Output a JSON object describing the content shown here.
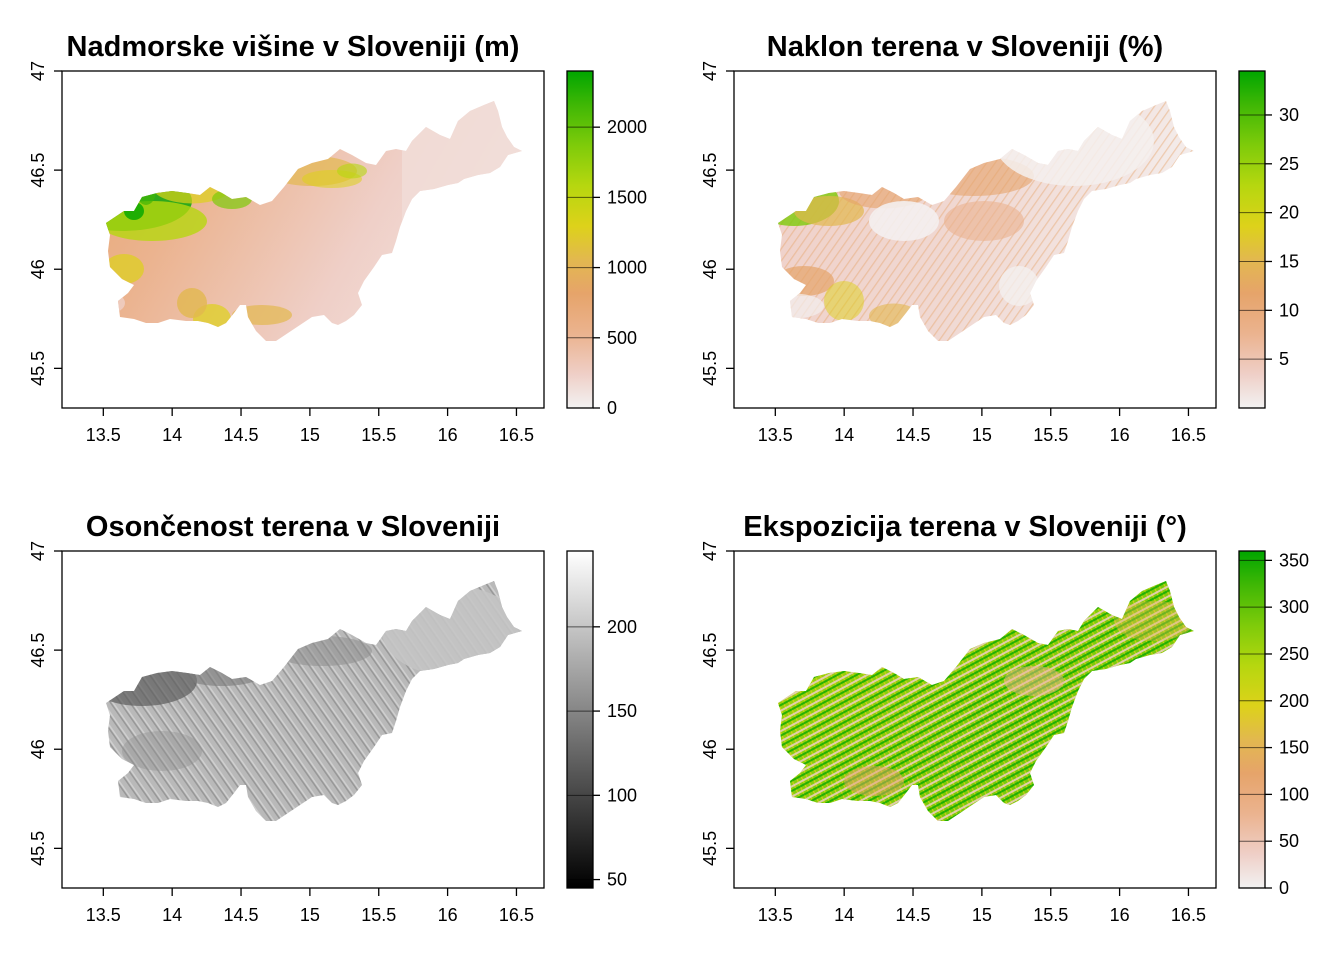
{
  "figure": {
    "panels": [
      {
        "id": "elevation",
        "title": "Nadmorske višine v Sloveniji (m)",
        "palette": "terrain",
        "legend_ticks": [
          "0",
          "500",
          "1000",
          "1500",
          "2000"
        ],
        "legend_range": [
          0,
          2400
        ]
      },
      {
        "id": "slope",
        "title": "Naklon terena v Sloveniji (%)",
        "palette": "terrain",
        "legend_ticks": [
          "5",
          "10",
          "15",
          "20",
          "25",
          "30"
        ],
        "legend_range": [
          0,
          34.5
        ]
      },
      {
        "id": "hillshade",
        "title": "Osončenost terena v Sloveniji",
        "palette": "grey",
        "legend_ticks": [
          "50",
          "100",
          "150",
          "200"
        ],
        "legend_range": [
          45,
          245
        ]
      },
      {
        "id": "aspect",
        "title": "Ekspozicija terena v Sloveniji (°)",
        "palette": "terrain",
        "legend_ticks": [
          "0",
          "50",
          "100",
          "150",
          "200",
          "250",
          "300",
          "350"
        ],
        "legend_range": [
          0,
          360
        ]
      }
    ],
    "x_ticks": [
      "13.5",
      "14",
      "14.5",
      "15",
      "15.5",
      "16",
      "16.5"
    ],
    "y_ticks": [
      "45.5",
      "46",
      "46.5",
      "47"
    ],
    "colors": {
      "terrain": [
        "#F2F2F2",
        "#EFCFC7",
        "#EBB38F",
        "#E6A46A",
        "#E2B84F",
        "#DDD21A",
        "#B6D70F",
        "#7ECB0A",
        "#3FB705",
        "#00A600"
      ],
      "grey": [
        "#000000",
        "#FFFFFF"
      ]
    }
  },
  "chart_data": [
    {
      "type": "heatmap",
      "title": "Nadmorske višine v Sloveniji (m)",
      "x_ticks": [
        13.5,
        14,
        14.5,
        15,
        15.5,
        16,
        16.5
      ],
      "y_ticks": [
        45.5,
        46,
        46.5,
        47
      ],
      "xlim": [
        13.2,
        16.7
      ],
      "ylim": [
        45.3,
        47
      ],
      "legend": {
        "min": 0,
        "max": 2400,
        "ticks": [
          0,
          500,
          1000,
          1500,
          2000
        ]
      }
    },
    {
      "type": "heatmap",
      "title": "Naklon terena v Sloveniji (%)",
      "x_ticks": [
        13.5,
        14,
        14.5,
        15,
        15.5,
        16,
        16.5
      ],
      "y_ticks": [
        45.5,
        46,
        46.5,
        47
      ],
      "xlim": [
        13.2,
        16.7
      ],
      "ylim": [
        45.3,
        47
      ],
      "legend": {
        "min": 0,
        "max": 34.5,
        "ticks": [
          5,
          10,
          15,
          20,
          25,
          30
        ]
      }
    },
    {
      "type": "heatmap",
      "title": "Osončenost terena v Sloveniji",
      "x_ticks": [
        13.5,
        14,
        14.5,
        15,
        15.5,
        16,
        16.5
      ],
      "y_ticks": [
        45.5,
        46,
        46.5,
        47
      ],
      "xlim": [
        13.2,
        16.7
      ],
      "ylim": [
        45.3,
        47
      ],
      "legend": {
        "min": 45,
        "max": 245,
        "ticks": [
          50,
          100,
          150,
          200
        ]
      }
    },
    {
      "type": "heatmap",
      "title": "Ekspozicija terena v Sloveniji (°)",
      "x_ticks": [
        13.5,
        14,
        14.5,
        15,
        15.5,
        16,
        16.5
      ],
      "y_ticks": [
        45.5,
        46,
        46.5,
        47
      ],
      "xlim": [
        13.2,
        16.7
      ],
      "ylim": [
        45.3,
        47
      ],
      "legend": {
        "min": 0,
        "max": 360,
        "ticks": [
          0,
          50,
          100,
          150,
          200,
          250,
          300,
          350
        ]
      }
    }
  ]
}
